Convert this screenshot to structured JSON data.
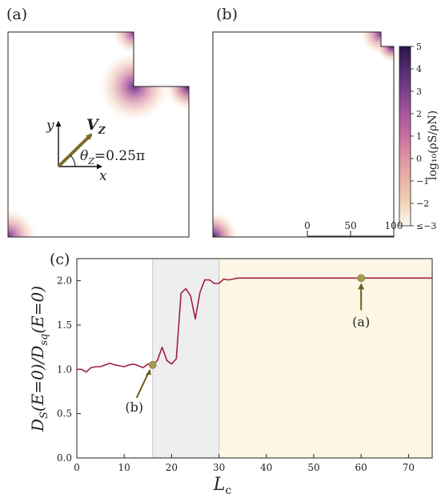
{
  "panel_labels": {
    "a": "(a)",
    "b": "(b)",
    "c": "(c)"
  },
  "inset": {
    "y_axis": "y",
    "x_axis": "x",
    "vector": "V",
    "vector_sub": "Z",
    "angle_text": "θ",
    "angle_sub": "Z",
    "angle_value": "=0.25π"
  },
  "colorbar": {
    "label": "log₁₀(ρS/ρN)",
    "ticks": [
      "5",
      "4",
      "3",
      "2",
      "1",
      "0",
      "−1",
      "−2",
      "≤−3"
    ],
    "colors": [
      "#2a1546",
      "#4e2a6e",
      "#7a3f8c",
      "#a5559a",
      "#c86f9f",
      "#dd94a3",
      "#e9b5a8",
      "#f1d3b5",
      "#f8ecd6",
      "#fdfaf2"
    ]
  },
  "scalebar": {
    "ticks": [
      "0",
      "50",
      "100"
    ]
  },
  "chart_data": {
    "type": "line",
    "xlabel": "Lc",
    "ylabel": "DS(E=0)/Dsq(E=0)",
    "xlim": [
      0,
      75
    ],
    "ylim": [
      0.0,
      2.25
    ],
    "xticks": [
      0,
      10,
      20,
      30,
      40,
      50,
      60,
      70
    ],
    "yticks": [
      "0.0",
      "0.5",
      "1.0",
      "1.5",
      "2.0"
    ],
    "line_color": "#9e2146",
    "regions": [
      {
        "from": 16,
        "to": 30,
        "color": "#eeeeee"
      },
      {
        "from": 30,
        "to": 75,
        "color": "#fdf6e4"
      }
    ],
    "series": [
      {
        "x": [
          0,
          1,
          2,
          3,
          4,
          5,
          6,
          7,
          8,
          9,
          10,
          11,
          12,
          13,
          14,
          15,
          16,
          17,
          18,
          19,
          20,
          21,
          22,
          23,
          24,
          25,
          26,
          27,
          28,
          29,
          30,
          31,
          32,
          33,
          34,
          35,
          40,
          50,
          60,
          70,
          75
        ],
        "y": [
          1.0,
          1.0,
          0.97,
          1.02,
          1.03,
          1.03,
          1.05,
          1.07,
          1.05,
          1.04,
          1.03,
          1.05,
          1.06,
          1.04,
          1.02,
          1.06,
          1.05,
          1.1,
          1.25,
          1.1,
          1.06,
          1.12,
          1.86,
          1.91,
          1.83,
          1.57,
          1.87,
          2.01,
          2.01,
          1.97,
          1.97,
          2.02,
          2.01,
          2.02,
          2.03,
          2.03,
          2.03,
          2.03,
          2.03,
          2.03,
          2.03
        ]
      }
    ],
    "markers": [
      {
        "label": "(b)",
        "x": 16,
        "y": 1.05
      },
      {
        "label": "(a)",
        "x": 60,
        "y": 2.03
      }
    ]
  }
}
